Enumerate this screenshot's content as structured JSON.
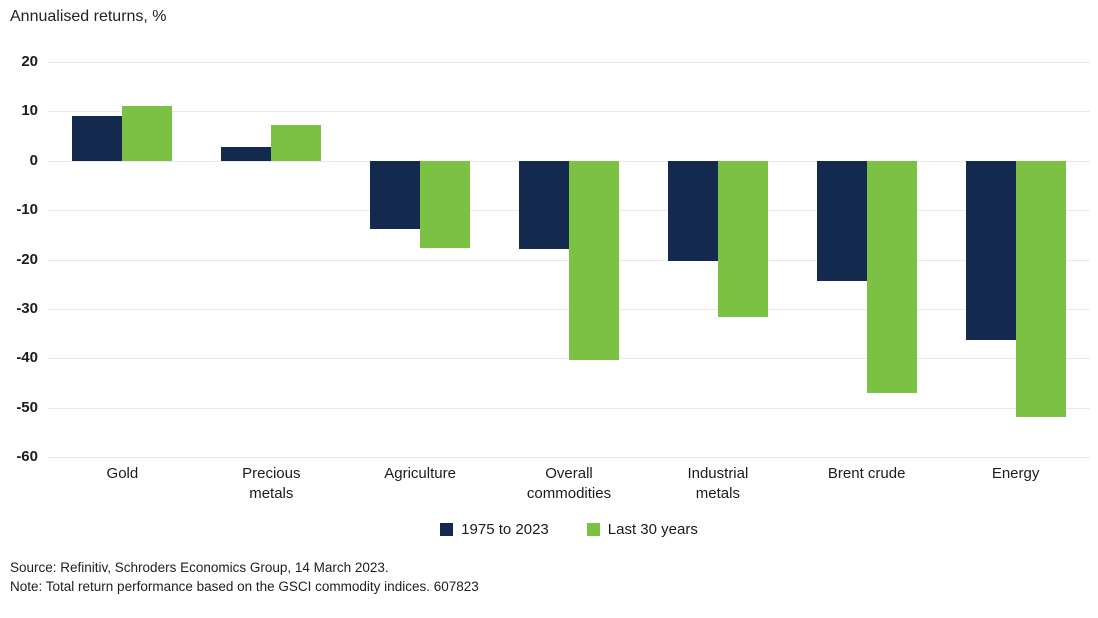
{
  "title": "Annualised returns, %",
  "chart_data": {
    "type": "bar",
    "categories": [
      "Gold",
      "Precious metals",
      "Agriculture",
      "Overall commodities",
      "Industrial metals",
      "Brent crude",
      "Energy"
    ],
    "series": [
      {
        "name": "1975 to 2023",
        "color": "#14294E",
        "values": [
          9.0,
          2.7,
          -13.8,
          -17.8,
          -20.3,
          -24.4,
          -36.4
        ]
      },
      {
        "name": "Last 30 years",
        "color": "#7BC143",
        "values": [
          11.0,
          7.3,
          -17.7,
          -40.3,
          -31.7,
          -47.0,
          -51.9
        ]
      }
    ],
    "ylabel": "Annualised returns, %",
    "ylim": [
      -60,
      20
    ],
    "yticks": [
      20,
      10,
      0,
      -10,
      -20,
      -30,
      -40,
      -50,
      -60
    ],
    "grid": true,
    "legend_position": "bottom",
    "gridline_color": "#e9e9e9",
    "text_color": "#1c1c1c",
    "background_color": "#ffffff"
  },
  "footer": {
    "source": "Source: Refinitiv, Schroders Economics Group, 14 March 2023.",
    "note": "Note: Total return performance based on the GSCI commodity indices. 607823"
  }
}
